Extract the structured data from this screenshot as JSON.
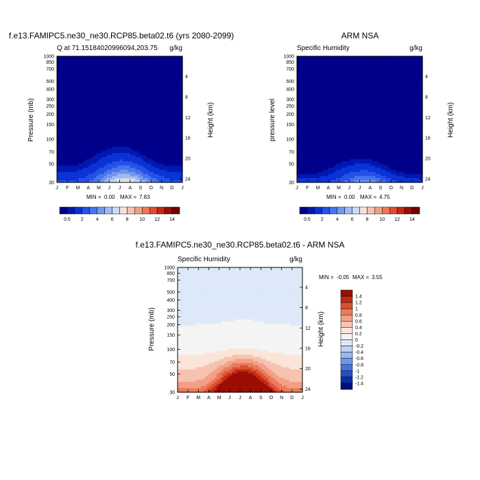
{
  "chart_data": [
    {
      "type": "heatmap",
      "title": "f.e13.FAMIPC5.ne30_ne30.RCP85.beta02.t6 (yrs 2080-2099)",
      "left_label": "Q at 71.15184020996094,203.75",
      "right_label": "g/kg",
      "xlabel": "",
      "ylabel": "Pressure (mb)",
      "ylabel_right": "Height (km)",
      "x": [
        "J",
        "F",
        "M",
        "A",
        "M",
        "J",
        "J",
        "A",
        "S",
        "O",
        "N",
        "D",
        "J"
      ],
      "y_ticks": [
        30,
        50,
        70,
        100,
        150,
        200,
        250,
        300,
        400,
        500,
        700,
        850,
        1000
      ],
      "y_right_ticks": [
        24,
        20,
        16,
        12,
        8,
        4
      ],
      "stats": {
        "min_label": "MIN =",
        "min": "0.00",
        "max_label": "MAX =",
        "max": "7.83"
      },
      "colorbar": {
        "orientation": "horizontal",
        "levels": [
          0.5,
          1,
          2,
          3,
          4,
          5,
          6,
          7,
          8,
          9,
          10,
          11,
          12,
          13,
          14
        ],
        "labels": [
          "0.5",
          "2",
          "4",
          "6",
          "8",
          "10",
          "12",
          "14"
        ]
      },
      "peak": {
        "month_index": 6.5,
        "value": 7.83
      },
      "top_envelope_mb": [
        560,
        560,
        540,
        450,
        380,
        340,
        320,
        340,
        400,
        480,
        540,
        560,
        560
      ]
    },
    {
      "type": "heatmap",
      "title": "ARM NSA",
      "left_label": "Specific Humidity",
      "right_label": "g/kg",
      "xlabel": "",
      "ylabel": "pressure level",
      "ylabel_right": "Height (km)",
      "x": [
        "J",
        "F",
        "M",
        "A",
        "M",
        "J",
        "J",
        "A",
        "S",
        "O",
        "N",
        "D",
        "J"
      ],
      "y_ticks": [
        30,
        50,
        70,
        100,
        150,
        200,
        250,
        300,
        400,
        500,
        700,
        850,
        1000
      ],
      "y_right_ticks": [
        24,
        20,
        16,
        12,
        8,
        4
      ],
      "stats": {
        "min_label": "MIN =",
        "min": "0.00",
        "max_label": "MAX =",
        "max": "4.75"
      },
      "colorbar": {
        "orientation": "horizontal",
        "levels": [
          0.5,
          1,
          2,
          3,
          4,
          5,
          6,
          7,
          8,
          9,
          10,
          11,
          12,
          13,
          14
        ],
        "labels": [
          "0.5",
          "2",
          "4",
          "6",
          "8",
          "10",
          "12",
          "14"
        ]
      },
      "peak": {
        "month_index": 6.5,
        "value": 4.75
      },
      "top_envelope_mb": [
        700,
        720,
        700,
        600,
        520,
        480,
        460,
        480,
        540,
        620,
        700,
        720,
        720
      ]
    },
    {
      "type": "heatmap",
      "title": "f.e13.FAMIPC5.ne30_ne30.RCP85.beta02.t6 - ARM NSA",
      "left_label": "Specific Humidity",
      "right_label": "g/kg",
      "xlabel": "",
      "ylabel": "Pressure (mb)",
      "ylabel_right": "Height (km)",
      "x": [
        "J",
        "F",
        "M",
        "A",
        "M",
        "J",
        "J",
        "A",
        "S",
        "O",
        "N",
        "D",
        "J"
      ],
      "y_ticks": [
        30,
        50,
        70,
        100,
        150,
        200,
        250,
        300,
        400,
        500,
        700,
        850,
        1000
      ],
      "y_right_ticks": [
        24,
        20,
        16,
        12,
        8,
        4
      ],
      "stats": {
        "min_label": "MIN =",
        "min": "-0.05",
        "max_label": "MAX =",
        "max": "3.55"
      },
      "colorbar": {
        "orientation": "vertical",
        "levels": [
          1.4,
          1.2,
          1,
          0.8,
          0.6,
          0.4,
          0.2,
          0,
          -0.2,
          -0.4,
          -0.6,
          -0.8,
          -1,
          -1.2,
          -1.4
        ],
        "labels": [
          "1.4",
          "1.2",
          "1",
          "0.8",
          "0.6",
          "0.4",
          "0.2",
          "0",
          "-0.2",
          "-0.4",
          "-0.6",
          "-0.8",
          "-1",
          "-1.2",
          "-1.4"
        ]
      },
      "peak": {
        "month_index": 6.3,
        "value": 3.55
      }
    }
  ],
  "colors": {
    "seq": [
      "#00008a",
      "#0018b0",
      "#0a33d6",
      "#2452e8",
      "#4a74ee",
      "#7396f0",
      "#9fbaf2",
      "#c8dcf6",
      "#f5e3da",
      "#f6c3b0",
      "#f2a086",
      "#ea7a5c",
      "#dd5034",
      "#c32a14",
      "#9c0d05",
      "#700000"
    ],
    "div": [
      "#9c0d05",
      "#c32a14",
      "#dd5034",
      "#ea7a5c",
      "#f2a086",
      "#f6c3b0",
      "#fbe4d8",
      "#f4f4f4",
      "#dde9f8",
      "#bcd3f4",
      "#98b8ef",
      "#6e96e8",
      "#4672dc",
      "#2450c4",
      "#0a2ea4",
      "#00107c"
    ]
  }
}
